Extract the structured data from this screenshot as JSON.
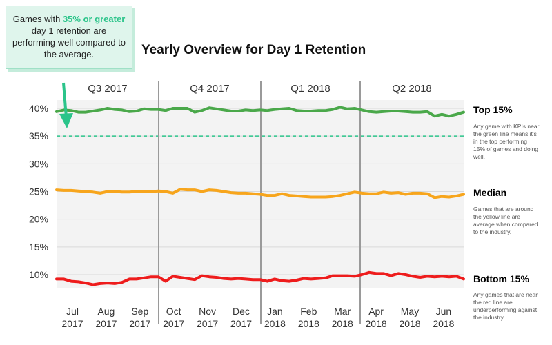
{
  "callout": {
    "pre": "Games with ",
    "highlight": "35% or greater",
    "post": " day 1 retention are performing well compared to the average."
  },
  "colors": {
    "top": "#4aa84a",
    "median": "#f7a51c",
    "bottom": "#ee1c1c",
    "threshold": "#2bc48a",
    "callout_bg": "#dff5ec",
    "plot_bg": "#f3f3f3"
  },
  "chart_data": {
    "type": "line",
    "title": "Yearly Overview for Day 1 Retention",
    "ylim": [
      7,
      42
    ],
    "yticks": [
      10,
      15,
      20,
      25,
      30,
      35,
      40
    ],
    "ytick_labels": [
      "10%",
      "15%",
      "20%",
      "25%",
      "30%",
      "35%",
      "40%"
    ],
    "quarters": [
      "Q3 2017",
      "Q4 2017",
      "Q1 2018",
      "Q2 2018"
    ],
    "month_labels": [
      {
        "month": "Jul",
        "year": "2017"
      },
      {
        "month": "Aug",
        "year": "2017"
      },
      {
        "month": "Sep",
        "year": "2017"
      },
      {
        "month": "Oct",
        "year": "2017"
      },
      {
        "month": "Nov",
        "year": "2017"
      },
      {
        "month": "Dec",
        "year": "2017"
      },
      {
        "month": "Jan",
        "year": "2018"
      },
      {
        "month": "Feb",
        "year": "2018"
      },
      {
        "month": "Mar",
        "year": "2018"
      },
      {
        "month": "Apr",
        "year": "2018"
      },
      {
        "month": "May",
        "year": "2018"
      },
      {
        "month": "Jun",
        "year": "2018"
      }
    ],
    "threshold": 35,
    "series": [
      {
        "name": "Top 15%",
        "description": "Any game with KPIs near the green line means it's in the top performing 15% of games and doing well.",
        "values": [
          39.4,
          39.7,
          39.6,
          39.3,
          39.3,
          39.5,
          39.7,
          40.0,
          39.8,
          39.7,
          39.4,
          39.5,
          39.9,
          39.8,
          39.8,
          39.6,
          40.0,
          40.0,
          40.0,
          39.3,
          39.6,
          40.1,
          39.9,
          39.7,
          39.5,
          39.5,
          39.7,
          39.6,
          39.7,
          39.6,
          39.8,
          39.9,
          40.0,
          39.6,
          39.5,
          39.5,
          39.6,
          39.6,
          39.8,
          40.2,
          39.9,
          40.0,
          39.7,
          39.4,
          39.3,
          39.4,
          39.5,
          39.5,
          39.4,
          39.3,
          39.3,
          39.4,
          38.6,
          38.9,
          38.6,
          38.9,
          39.3
        ]
      },
      {
        "name": "Median",
        "description": "Games that are around the yellow line are average when compared to the industry.",
        "values": [
          25.3,
          25.2,
          25.2,
          25.1,
          25.0,
          24.9,
          24.7,
          25.0,
          25.0,
          24.9,
          24.9,
          25.0,
          25.0,
          25.0,
          25.1,
          25.0,
          24.7,
          25.4,
          25.3,
          25.3,
          25.0,
          25.3,
          25.2,
          25.0,
          24.8,
          24.7,
          24.7,
          24.6,
          24.5,
          24.3,
          24.3,
          24.6,
          24.3,
          24.2,
          24.1,
          24.0,
          24.0,
          24.0,
          24.1,
          24.3,
          24.6,
          24.9,
          24.7,
          24.6,
          24.6,
          24.9,
          24.7,
          24.8,
          24.5,
          24.7,
          24.7,
          24.6,
          23.9,
          24.1,
          24.0,
          24.2,
          24.5
        ]
      },
      {
        "name": "Bottom 15%",
        "description": "Any games that are near the red line are underperforming against the industry.",
        "values": [
          9.2,
          9.2,
          8.8,
          8.7,
          8.5,
          8.2,
          8.4,
          8.5,
          8.4,
          8.6,
          9.2,
          9.2,
          9.4,
          9.6,
          9.6,
          8.8,
          9.7,
          9.5,
          9.3,
          9.1,
          9.8,
          9.6,
          9.5,
          9.3,
          9.2,
          9.3,
          9.2,
          9.1,
          9.1,
          8.8,
          9.2,
          8.9,
          8.8,
          9.0,
          9.3,
          9.2,
          9.3,
          9.4,
          9.8,
          9.8,
          9.8,
          9.7,
          10.0,
          10.4,
          10.2,
          10.2,
          9.8,
          10.2,
          10.0,
          9.7,
          9.5,
          9.7,
          9.6,
          9.7,
          9.6,
          9.7,
          9.2
        ]
      }
    ]
  }
}
